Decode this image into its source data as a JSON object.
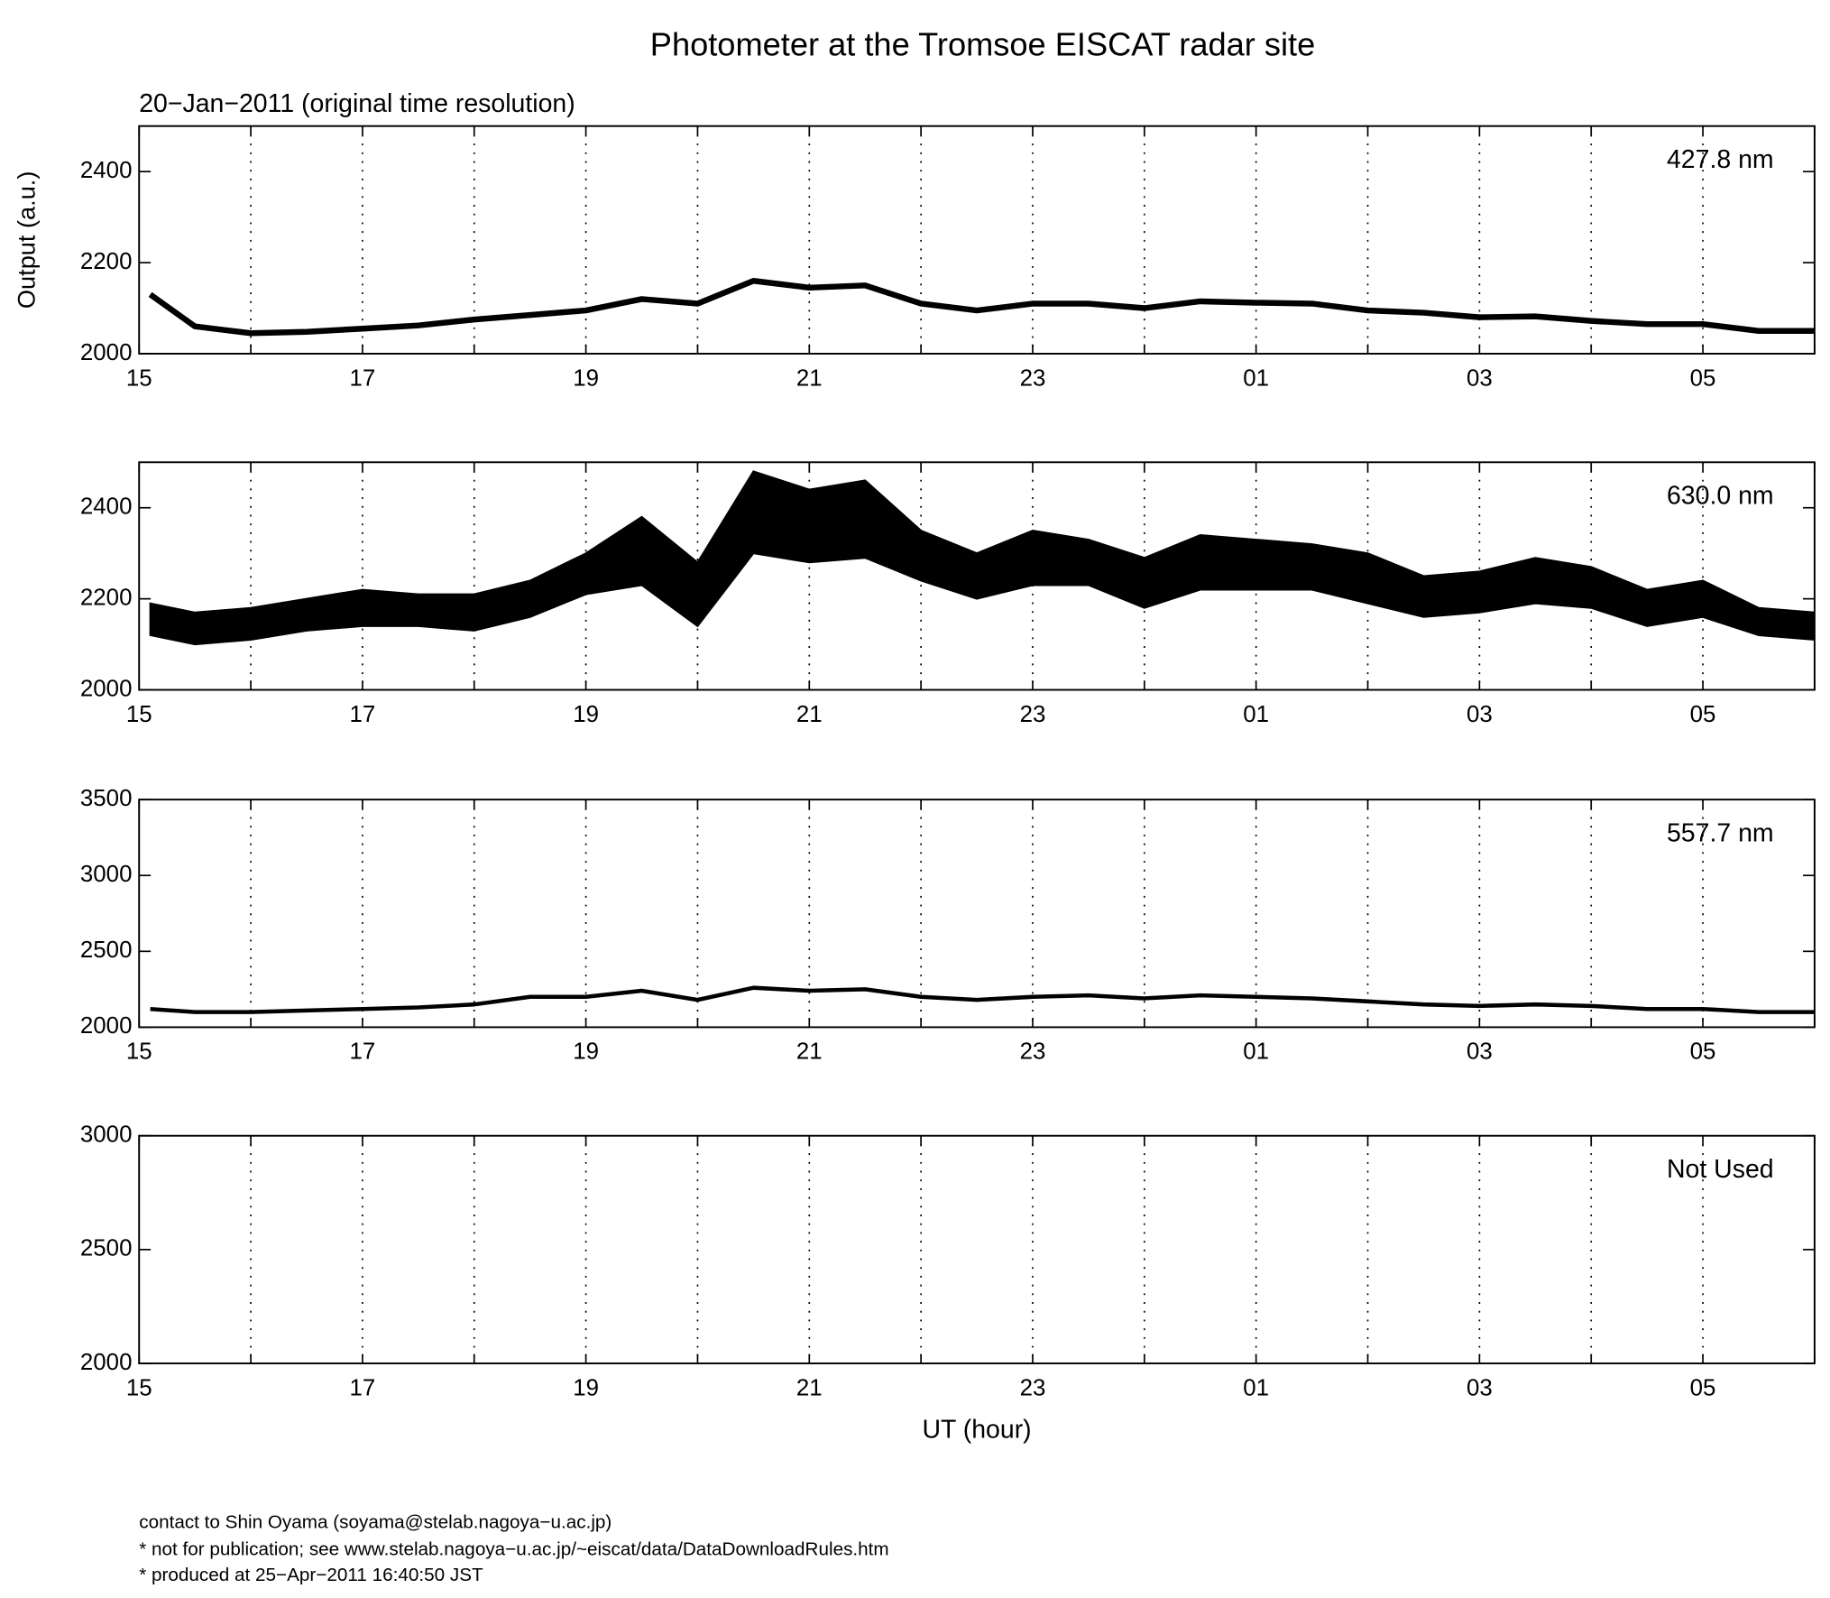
{
  "chart_data": [
    {
      "type": "line",
      "title": "Photometer at the Tromsoe EISCAT radar site",
      "subtitle": "20−Jan−2011 (original time resolution)",
      "ylabel": "Output (a.u.)",
      "annotation": "427.8 nm",
      "xlim": [
        15,
        30
      ],
      "xticks": [
        15,
        17,
        19,
        21,
        23,
        {
          "value": 25,
          "label": "01"
        },
        {
          "value": 27,
          "label": "03"
        },
        {
          "value": 29,
          "label": "05"
        }
      ],
      "xminorticks": [
        16,
        18,
        20,
        22,
        24,
        26,
        28,
        30
      ],
      "grid": true,
      "ylim": [
        2000,
        2500
      ],
      "yticks": [
        2000,
        2200,
        2400
      ],
      "series": [
        {
          "color": "#000000",
          "x": [
            15.1,
            15.5,
            16,
            16.5,
            17,
            17.5,
            18,
            18.5,
            19,
            19.5,
            20,
            20.5,
            21,
            21.5,
            22,
            22.5,
            23,
            23.5,
            24,
            24.5,
            25,
            25.5,
            26,
            26.5,
            27,
            27.5,
            28,
            28.5,
            29,
            29.5,
            30
          ],
          "values": [
            2130,
            2060,
            2045,
            2048,
            2055,
            2062,
            2075,
            2085,
            2095,
            2120,
            2110,
            2160,
            2145,
            2150,
            2110,
            2095,
            2110,
            2110,
            2100,
            2115,
            2112,
            2110,
            2095,
            2090,
            2080,
            2082,
            2072,
            2065,
            2065,
            2050,
            2050
          ]
        }
      ]
    },
    {
      "type": "area",
      "annotation": "630.0 nm",
      "xlim": [
        15,
        30
      ],
      "xticks": [
        15,
        17,
        19,
        21,
        23,
        {
          "value": 25,
          "label": "01"
        },
        {
          "value": 27,
          "label": "03"
        },
        {
          "value": 29,
          "label": "05"
        }
      ],
      "xminorticks": [
        16,
        18,
        20,
        22,
        24,
        26,
        28,
        30
      ],
      "grid": true,
      "ylim": [
        2000,
        2500
      ],
      "yticks": [
        2000,
        2200,
        2400
      ],
      "series": [
        {
          "color": "#000000",
          "x": [
            15.1,
            15.5,
            16,
            16.5,
            17,
            17.5,
            18,
            18.5,
            19,
            19.5,
            20,
            20.5,
            21,
            21.5,
            22,
            22.5,
            23,
            23.5,
            24,
            24.5,
            25,
            25.5,
            26,
            26.5,
            27,
            27.5,
            28,
            28.5,
            29,
            29.5,
            30
          ],
          "low": [
            2120,
            2100,
            2110,
            2130,
            2140,
            2140,
            2130,
            2160,
            2210,
            2230,
            2140,
            2300,
            2280,
            2290,
            2240,
            2200,
            2230,
            2230,
            2180,
            2220,
            2220,
            2220,
            2190,
            2160,
            2170,
            2190,
            2180,
            2140,
            2160,
            2120,
            2110
          ],
          "high": [
            2190,
            2170,
            2180,
            2200,
            2220,
            2210,
            2210,
            2240,
            2300,
            2380,
            2280,
            2480,
            2440,
            2460,
            2350,
            2300,
            2350,
            2330,
            2290,
            2340,
            2330,
            2320,
            2300,
            2250,
            2260,
            2290,
            2270,
            2220,
            2240,
            2180,
            2170
          ]
        }
      ]
    },
    {
      "type": "line",
      "annotation": "557.7 nm",
      "xlim": [
        15,
        30
      ],
      "xticks": [
        15,
        17,
        19,
        21,
        23,
        {
          "value": 25,
          "label": "01"
        },
        {
          "value": 27,
          "label": "03"
        },
        {
          "value": 29,
          "label": "05"
        }
      ],
      "xminorticks": [
        16,
        18,
        20,
        22,
        24,
        26,
        28,
        30
      ],
      "grid": true,
      "ylim": [
        2000,
        3500
      ],
      "yticks": [
        2000,
        2500,
        3000,
        3500
      ],
      "series": [
        {
          "color": "#000000",
          "x": [
            15.1,
            15.5,
            16,
            16.5,
            17,
            17.5,
            18,
            18.5,
            19,
            19.5,
            20,
            20.5,
            21,
            21.5,
            22,
            22.5,
            23,
            23.5,
            24,
            24.5,
            25,
            25.5,
            26,
            26.5,
            27,
            27.5,
            28,
            28.5,
            29,
            29.5,
            30
          ],
          "values": [
            2120,
            2100,
            2100,
            2110,
            2120,
            2130,
            2150,
            2200,
            2200,
            2240,
            2180,
            2260,
            2240,
            2250,
            2200,
            2180,
            2200,
            2210,
            2190,
            2210,
            2200,
            2190,
            2170,
            2150,
            2140,
            2150,
            2140,
            2120,
            2120,
            2100,
            2100
          ]
        }
      ]
    },
    {
      "type": "line",
      "annotation": "Not Used",
      "xlabel": "UT (hour)",
      "xlim": [
        15,
        30
      ],
      "xticks": [
        15,
        17,
        19,
        21,
        23,
        {
          "value": 25,
          "label": "01"
        },
        {
          "value": 27,
          "label": "03"
        },
        {
          "value": 29,
          "label": "05"
        }
      ],
      "xminorticks": [
        16,
        18,
        20,
        22,
        24,
        26,
        28,
        30
      ],
      "grid": true,
      "ylim": [
        2000,
        3000
      ],
      "yticks": [
        2000,
        2500,
        3000
      ],
      "series": []
    }
  ],
  "footer": [
    "contact to Shin Oyama (soyama@stelab.nagoya−u.ac.jp)",
    "* not for publication; see www.stelab.nagoya−u.ac.jp/~eiscat/data/DataDownloadRules.htm",
    "* produced at 25−Apr−2011 16:40:50 JST"
  ]
}
